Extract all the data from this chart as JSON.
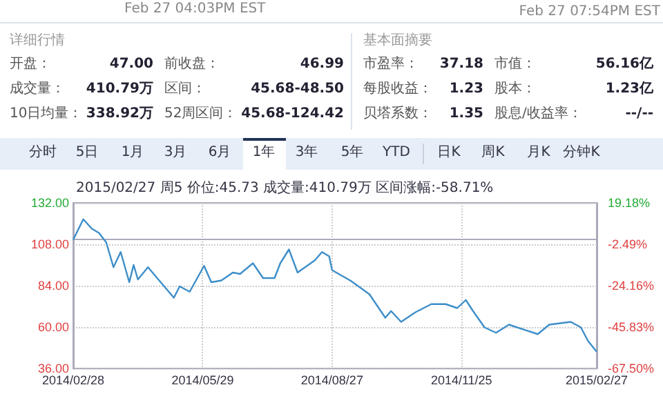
{
  "chart_data": {
    "type": "line",
    "annotations": [
      "Feb 27 04:03PM EST",
      "Feb 27 07:54PM EST",
      "详细行情",
      "开盘：",
      "47.00",
      "前收盘：",
      "46.99",
      "成交量：",
      "410.79万",
      "区间：",
      "45.68-48.50",
      "10日均量：",
      "338.92万",
      "52周区间：",
      "45.68-124.42",
      "基本面摘要",
      "市盈率：",
      "37.18",
      "市值：",
      "56.16亿",
      "每股收益：",
      "1.23",
      "股本：",
      "1.23亿",
      "贝塔系数：",
      "1.35",
      "股息/收益率：",
      "--/--",
      "分时",
      "5日",
      "1月",
      "3月",
      "6月",
      "1年",
      "3年",
      "5年",
      "YTD",
      "日K",
      "周K",
      "月K",
      "分钟K",
      "2015/02/27 周5 价位:45.73 成交量:410.79万 区间涨幅:-58.71%"
    ],
    "x": [
      "2014-02-28",
      "2014-03-07",
      "2014-03-13",
      "2014-03-18",
      "2014-03-23",
      "2014-03-28",
      "2014-04-02",
      "2014-04-08",
      "2014-04-11",
      "2014-04-14",
      "2014-04-21",
      "2014-04-29",
      "2014-05-09",
      "2014-05-13",
      "2014-05-20",
      "2014-05-30",
      "2014-06-04",
      "2014-06-11",
      "2014-06-19",
      "2014-06-24",
      "2014-07-03",
      "2014-07-10",
      "2014-07-18",
      "2014-07-22",
      "2014-07-28",
      "2014-08-03",
      "2014-08-15",
      "2014-08-20",
      "2014-08-25",
      "2014-08-27",
      "2014-09-09",
      "2014-09-22",
      "2014-10-03",
      "2014-10-07",
      "2014-10-14",
      "2014-10-24",
      "2014-11-04",
      "2014-11-14",
      "2014-11-22",
      "2014-11-28",
      "2014-12-03",
      "2014-12-11",
      "2014-12-19",
      "2014-12-28",
      "2015-01-17",
      "2015-01-25",
      "2015-02-09",
      "2015-02-16",
      "2015-02-21",
      "2015-02-27"
    ],
    "series": [
      {
        "color": "#3d8ec9",
        "values": [
          110.6,
          122.5,
          117,
          114.5,
          109,
          94.7,
          103.5,
          86,
          96,
          87.6,
          94.7,
          86.8,
          77,
          83.6,
          80.5,
          95.5,
          86,
          87,
          91.6,
          90.8,
          97,
          88.4,
          88.4,
          97,
          105,
          91.6,
          98.7,
          103.5,
          101,
          93,
          86.8,
          79,
          65.4,
          69.3,
          63,
          68.6,
          73.3,
          73.3,
          71,
          75.7,
          69.3,
          59.8,
          56.7,
          61.4,
          55.9,
          61.4,
          63,
          59.8,
          51.9,
          45.7
        ]
      }
    ],
    "xlim": [
      "2014-02-28",
      "2015-02-27"
    ],
    "xticks": [
      {
        "value": "2014-02-28",
        "label": "2014/02/28"
      },
      {
        "value": "2014-05-29",
        "label": "2014/05/29"
      },
      {
        "value": "2014-08-27",
        "label": "2014/08/27"
      },
      {
        "value": "2014-11-25",
        "label": "2014/11/25"
      },
      {
        "value": "2015-02-27",
        "label": "2015/02/27"
      }
    ],
    "ylim": [
      36,
      132
    ],
    "yticks": [
      {
        "value": 36,
        "label": "36.00"
      },
      {
        "value": 60,
        "label": "60.00"
      },
      {
        "value": 84,
        "label": "84.00"
      },
      {
        "value": 108,
        "label": "108.00"
      },
      {
        "value": 132,
        "label": "132.00"
      }
    ],
    "y2lim": [
      -67.5,
      19.18
    ],
    "y2ticks": [
      {
        "value": -67.5,
        "label": "-67.50%"
      },
      {
        "value": -45.83,
        "label": "-45.83%"
      },
      {
        "value": -24.16,
        "label": "-24.16%"
      },
      {
        "value": -2.49,
        "label": "-2.49%"
      },
      {
        "value": 19.18,
        "label": "19.18%"
      }
    ],
    "grid": true,
    "marker": "none",
    "line_style": "solid"
  }
}
